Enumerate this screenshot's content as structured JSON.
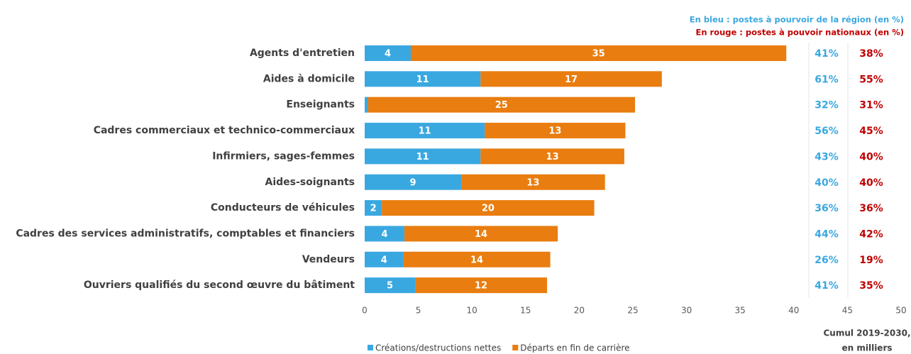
{
  "chart_data": {
    "type": "barh_stacked",
    "categories": [
      "Agents d'entretien",
      "Aides à domicile",
      "Enseignants",
      "Cadres commerciaux et technico-commerciaux",
      "Infirmiers, sages-femmes",
      "Aides-soignants",
      "Conducteurs de véhicules",
      "Cadres des services administratifs, comptables et financiers",
      "Vendeurs",
      "Ouvriers qualifiés du second œuvre du bâtiment"
    ],
    "series": [
      {
        "name": "Créations/destructions nettes",
        "color": "#3aa8e0",
        "values": [
          4.3,
          10.8,
          0.3,
          11.2,
          10.8,
          9.0,
          1.6,
          3.7,
          3.6,
          4.7
        ],
        "value_labels": [
          "4",
          "11",
          null,
          "11",
          "11",
          "9",
          "2",
          "4",
          "4",
          "5"
        ]
      },
      {
        "name": "Départs en fin de carrière",
        "color": "#e97d0f",
        "values": [
          35.0,
          16.9,
          24.9,
          13.1,
          13.4,
          13.4,
          19.8,
          14.3,
          13.7,
          12.3
        ],
        "value_labels": [
          "35",
          "17",
          "25",
          "13",
          "13",
          "13",
          "20",
          "14",
          "14",
          "12"
        ]
      }
    ],
    "xlim": [
      0,
      50
    ],
    "xticks": [
      0,
      5,
      10,
      15,
      20,
      25,
      30,
      35,
      40,
      45,
      50
    ],
    "x_label": [
      "Cumul 2019-2030,",
      "en milliers"
    ],
    "regional_share": {
      "label": "En bleu : postes à pourvoir de la région (en %)",
      "color": "#3aa8e0",
      "values": [
        41,
        61,
        32,
        56,
        43,
        40,
        36,
        44,
        26,
        41
      ],
      "value_labels": [
        "41%",
        "61%",
        "32%",
        "56%",
        "43%",
        "40%",
        "36%",
        "44%",
        "26%",
        "41%"
      ]
    },
    "national_share": {
      "label": "En rouge : postes à pouvoir nationaux (en %)",
      "color": "#c00000",
      "values": [
        38,
        55,
        31,
        45,
        40,
        40,
        36,
        42,
        19,
        35
      ],
      "value_labels": [
        "38%",
        "55%",
        "31%",
        "45%",
        "40%",
        "40%",
        "36%",
        "42%",
        "19%",
        "35%"
      ]
    }
  }
}
